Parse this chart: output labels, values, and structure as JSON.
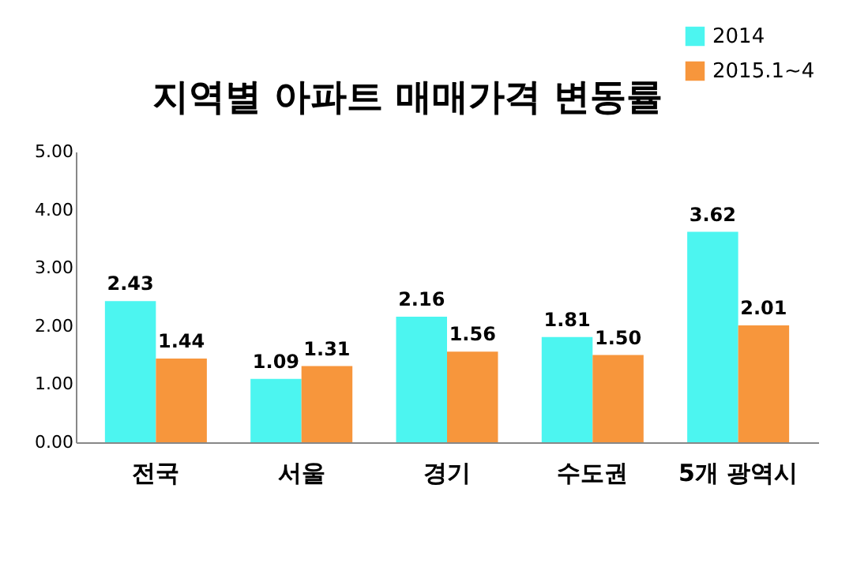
{
  "chart_data": {
    "type": "bar",
    "title": "지역별 아파트 매매가격 변동률",
    "categories": [
      "전국",
      "서울",
      "경기",
      "수도권",
      "5개 광역시"
    ],
    "series": [
      {
        "name": "2014",
        "color": "#4cf5f0",
        "values": [
          2.43,
          1.09,
          2.16,
          1.81,
          3.62
        ],
        "value_labels": [
          "2.43",
          "1.09",
          "2.16",
          "1.81",
          "3.62"
        ]
      },
      {
        "name": "2015.1~4",
        "color": "#f7963c",
        "values": [
          1.44,
          1.31,
          1.56,
          1.5,
          2.01
        ],
        "value_labels": [
          "1.44",
          "1.31",
          "1.56",
          "1.50",
          "2.01"
        ]
      }
    ],
    "ylim": [
      0,
      5
    ],
    "yticks": [
      {
        "value": 0,
        "label": "0.00"
      },
      {
        "value": 1,
        "label": "1.00"
      },
      {
        "value": 2,
        "label": "2.00"
      },
      {
        "value": 3,
        "label": "3.00"
      },
      {
        "value": 4,
        "label": "4.00"
      },
      {
        "value": 5,
        "label": "5.00"
      }
    ],
    "grid": false,
    "legend": "top right"
  }
}
